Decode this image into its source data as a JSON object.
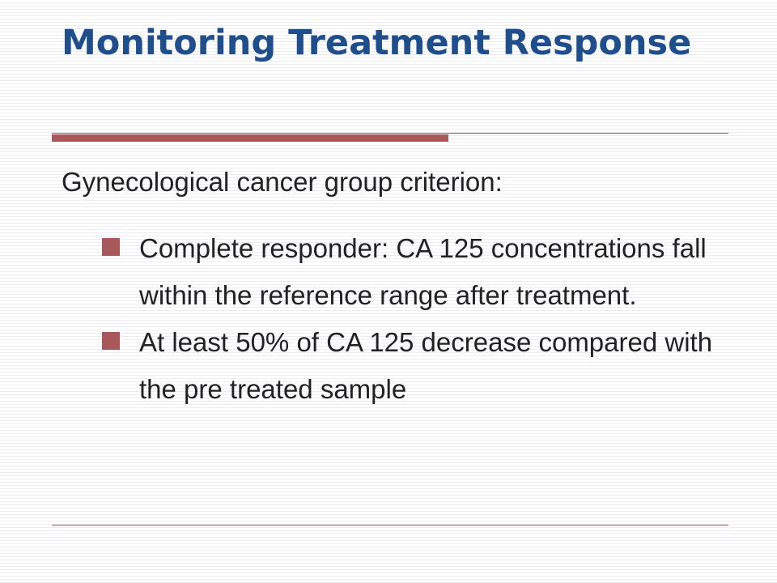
{
  "slide": {
    "title": "Monitoring Treatment Response",
    "intro": "Gynecological cancer group criterion:",
    "bullets": [
      "Complete responder: CA 125 concentrations fall within the reference range after treatment.",
      "At least 50% of CA 125 decrease compared with the pre treated sample"
    ]
  },
  "colors": {
    "title": "#1f4e8c",
    "accent": "#a8585a",
    "text": "#222222"
  }
}
